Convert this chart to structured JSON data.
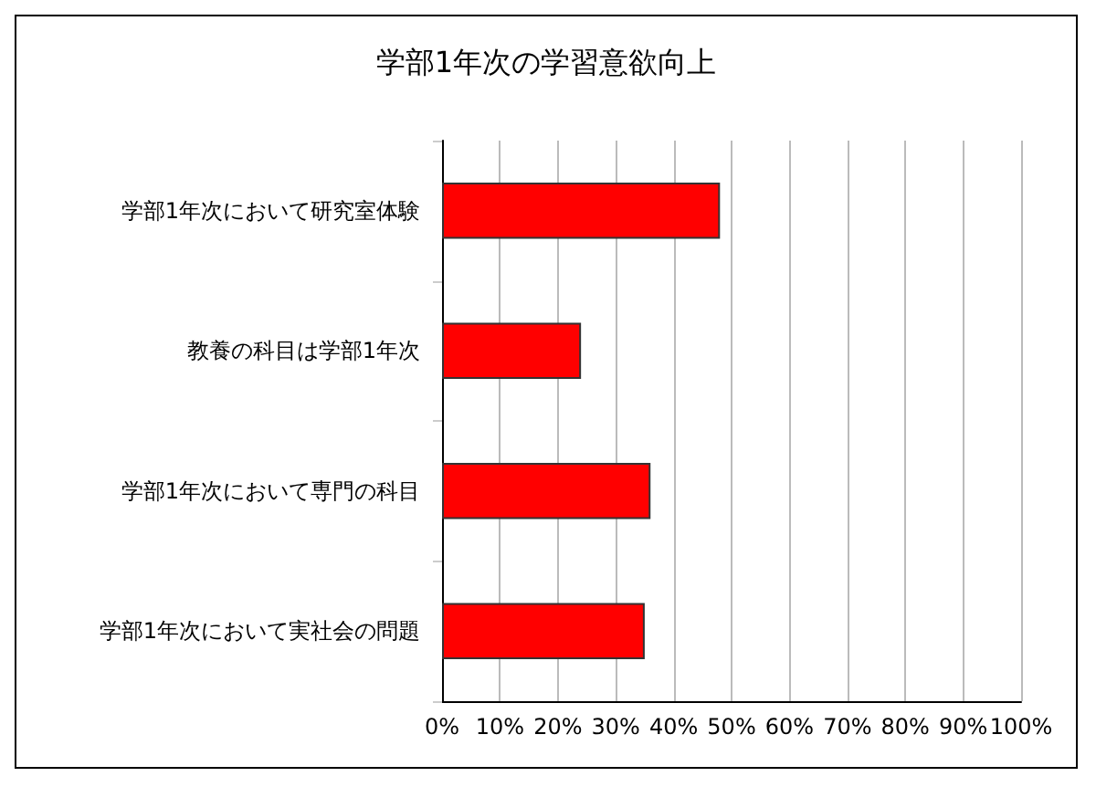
{
  "chart_data": {
    "type": "bar",
    "orientation": "horizontal",
    "title": "学部1年次の学習意欲向上",
    "categories": [
      "学部1年次において研究室体験",
      "教養の科目は学部1年次",
      "学部1年次において専門の科目",
      "学部1年次において実社会の問題"
    ],
    "values": [
      48,
      24,
      36,
      35
    ],
    "color": "#ff0000",
    "xlim": [
      0,
      100
    ],
    "xticks": [
      {
        "value": 0,
        "label": "0%"
      },
      {
        "value": 10,
        "label": "10%"
      },
      {
        "value": 20,
        "label": "20%"
      },
      {
        "value": 30,
        "label": "30%"
      },
      {
        "value": 40,
        "label": "40%"
      },
      {
        "value": 50,
        "label": "50%"
      },
      {
        "value": 60,
        "label": "60%"
      },
      {
        "value": 70,
        "label": "70%"
      },
      {
        "value": 80,
        "label": "80%"
      },
      {
        "value": 90,
        "label": "90%"
      },
      {
        "value": 100,
        "label": "100%"
      }
    ],
    "grid": "x"
  }
}
